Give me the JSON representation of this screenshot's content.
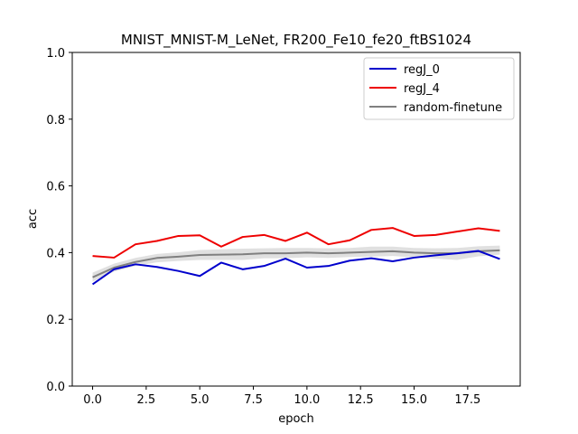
{
  "chart_data": {
    "type": "line",
    "title": "MNIST_MNIST-M_LeNet, FR200_Fe10_fe20_ftBS1024",
    "xlabel": "epoch",
    "ylabel": "acc",
    "xlim": [
      -0.95,
      19.95
    ],
    "ylim": [
      0,
      1
    ],
    "xticks": [
      0,
      2.5,
      5,
      7.5,
      10,
      12.5,
      15,
      17.5
    ],
    "xtick_labels": [
      "0.0",
      "2.5",
      "5.0",
      "7.5",
      "10.0",
      "12.5",
      "15.0",
      "17.5"
    ],
    "yticks": [
      0,
      0.2,
      0.4,
      0.6,
      0.8,
      1.0
    ],
    "ytick_labels": [
      "0.0",
      "0.2",
      "0.4",
      "0.6",
      "0.8",
      "1.0"
    ],
    "grid": false,
    "legend_position": "top-right",
    "x": [
      0,
      1,
      2,
      3,
      4,
      5,
      6,
      7,
      8,
      9,
      10,
      11,
      12,
      13,
      14,
      15,
      16,
      17,
      18,
      19
    ],
    "series": [
      {
        "name": "regJ_0",
        "color": "#0000cc",
        "values": [
          0.305,
          0.35,
          0.365,
          0.357,
          0.345,
          0.33,
          0.37,
          0.35,
          0.36,
          0.382,
          0.355,
          0.36,
          0.376,
          0.383,
          0.374,
          0.385,
          0.392,
          0.398,
          0.405,
          0.381
        ]
      },
      {
        "name": "regJ_4",
        "color": "#ee0000",
        "values": [
          0.39,
          0.385,
          0.425,
          0.435,
          0.45,
          0.452,
          0.418,
          0.447,
          0.453,
          0.435,
          0.46,
          0.425,
          0.437,
          0.468,
          0.474,
          0.45,
          0.453,
          0.463,
          0.473,
          0.465
        ]
      },
      {
        "name": "random-finetune",
        "color": "#808080",
        "band_color": "#d3d3d3",
        "values": [
          0.326,
          0.355,
          0.372,
          0.384,
          0.388,
          0.393,
          0.394,
          0.395,
          0.398,
          0.398,
          0.4,
          0.398,
          0.4,
          0.402,
          0.404,
          0.4,
          0.398,
          0.398,
          0.404,
          0.407
        ],
        "lower": [
          0.313,
          0.343,
          0.36,
          0.371,
          0.375,
          0.378,
          0.378,
          0.378,
          0.383,
          0.383,
          0.386,
          0.384,
          0.387,
          0.388,
          0.39,
          0.386,
          0.382,
          0.378,
          0.389,
          0.394
        ],
        "upper": [
          0.34,
          0.367,
          0.384,
          0.396,
          0.401,
          0.408,
          0.41,
          0.412,
          0.413,
          0.414,
          0.414,
          0.413,
          0.414,
          0.418,
          0.418,
          0.414,
          0.413,
          0.414,
          0.419,
          0.421
        ]
      }
    ]
  }
}
